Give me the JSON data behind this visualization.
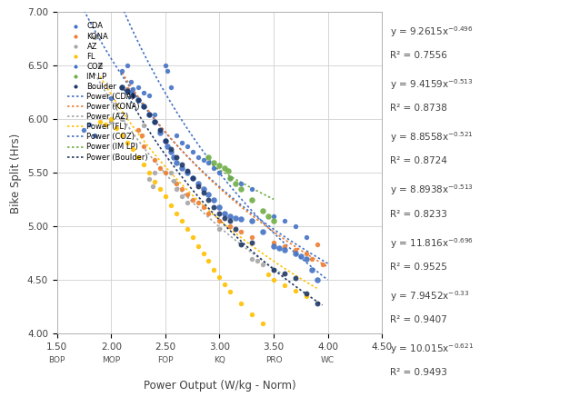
{
  "title": "",
  "xlabel": "Power Output (W/kg - Norm)",
  "ylabel": "Bike Split (Hrs)",
  "xlim": [
    1.5,
    4.5
  ],
  "ylim": [
    4.0,
    7.0
  ],
  "xticks": [
    1.5,
    2.0,
    2.5,
    3.0,
    3.5,
    4.0,
    4.5
  ],
  "yticks": [
    4.0,
    4.5,
    5.0,
    5.5,
    6.0,
    6.5,
    7.0
  ],
  "x_secondary_labels": {
    "1.5": "BOP",
    "2.0": "MOP",
    "2.5": "FOP",
    "3.0": "KQ",
    "3.5": "PRO",
    "4.0": "WC"
  },
  "series": {
    "CDA": {
      "color": "#4472C4",
      "size": 15,
      "x": [
        1.75,
        1.8,
        1.85,
        2.0,
        2.1,
        2.15,
        2.18,
        2.2,
        2.25,
        2.3,
        2.35,
        2.4,
        2.45,
        2.5,
        2.52,
        2.55,
        2.6,
        2.65,
        2.7,
        2.75,
        2.8,
        2.85,
        2.9,
        2.95,
        3.0,
        3.1,
        3.2,
        3.3,
        3.5,
        3.6,
        3.7,
        3.8
      ],
      "y": [
        5.9,
        5.95,
        5.85,
        6.2,
        6.45,
        6.5,
        6.35,
        6.28,
        6.3,
        6.25,
        6.22,
        6.05,
        5.9,
        6.5,
        6.45,
        6.3,
        5.85,
        5.78,
        5.75,
        5.7,
        5.65,
        5.62,
        5.6,
        5.55,
        5.5,
        5.45,
        5.4,
        5.35,
        5.1,
        5.05,
        5.0,
        4.9
      ]
    },
    "KONA": {
      "color": "#ED7D31",
      "size": 15,
      "x": [
        2.1,
        2.15,
        2.2,
        2.25,
        2.28,
        2.3,
        2.4,
        2.45,
        2.5,
        2.6,
        2.65,
        2.7,
        2.75,
        2.8,
        2.85,
        2.9,
        3.0,
        3.1,
        3.2,
        3.3,
        3.5,
        3.6,
        3.7,
        3.8,
        3.85,
        3.9,
        3.95
      ],
      "y": [
        6.3,
        6.28,
        6.22,
        5.9,
        5.85,
        5.75,
        5.62,
        5.55,
        5.5,
        5.4,
        5.35,
        5.3,
        5.25,
        5.22,
        5.18,
        5.12,
        5.05,
        5.0,
        4.95,
        4.9,
        4.85,
        4.82,
        4.78,
        4.75,
        4.7,
        4.83,
        4.65
      ]
    },
    "AZ": {
      "color": "#A5A5A5",
      "size": 15,
      "x": [
        1.85,
        1.9,
        2.0,
        2.1,
        2.3,
        2.35,
        2.38,
        2.4,
        2.55,
        2.58,
        2.6,
        2.65,
        2.7,
        3.0,
        3.3,
        3.35,
        3.4,
        3.5
      ],
      "y": [
        6.77,
        6.5,
        5.98,
        6.0,
        5.94,
        5.44,
        5.38,
        5.5,
        5.5,
        5.43,
        5.35,
        5.28,
        5.22,
        4.98,
        4.7,
        4.68,
        4.65,
        4.6
      ]
    },
    "FL": {
      "color": "#FFC000",
      "size": 15,
      "x": [
        1.9,
        1.95,
        2.0,
        2.05,
        2.1,
        2.15,
        2.2,
        2.25,
        2.3,
        2.35,
        2.4,
        2.45,
        2.5,
        2.55,
        2.6,
        2.65,
        2.7,
        2.75,
        2.8,
        2.85,
        2.9,
        2.95,
        3.0,
        3.05,
        3.1,
        3.2,
        3.3,
        3.4,
        3.45,
        3.5,
        3.6,
        3.7,
        3.8
      ],
      "y": [
        5.98,
        5.95,
        6.0,
        5.92,
        5.85,
        5.78,
        5.72,
        5.65,
        5.58,
        5.5,
        5.42,
        5.35,
        5.28,
        5.2,
        5.12,
        5.05,
        4.98,
        4.9,
        4.82,
        4.75,
        4.68,
        4.6,
        4.53,
        4.46,
        4.39,
        4.28,
        4.18,
        4.1,
        4.55,
        4.5,
        4.45,
        4.4,
        4.35
      ]
    },
    "COZ": {
      "color": "#4472C4",
      "size": 22,
      "x": [
        2.1,
        2.15,
        2.18,
        2.2,
        2.25,
        2.3,
        2.35,
        2.4,
        2.45,
        2.5,
        2.52,
        2.55,
        2.58,
        2.6,
        2.65,
        2.7,
        2.75,
        2.8,
        2.85,
        2.9,
        2.95,
        3.0,
        3.05,
        3.1,
        3.15,
        3.2,
        3.3,
        3.4,
        3.5,
        3.55,
        3.6,
        3.7,
        3.75,
        3.8,
        3.85,
        3.9
      ],
      "y": [
        6.3,
        6.27,
        6.25,
        6.22,
        6.18,
        6.12,
        6.05,
        5.98,
        5.88,
        5.8,
        5.75,
        5.7,
        5.65,
        5.6,
        5.55,
        5.5,
        5.45,
        5.4,
        5.35,
        5.3,
        5.25,
        5.18,
        5.12,
        5.1,
        5.08,
        5.07,
        5.05,
        4.95,
        4.82,
        4.8,
        4.78,
        4.75,
        4.72,
        4.7,
        4.6,
        4.5
      ]
    },
    "IM LP": {
      "color": "#70AD47",
      "size": 22,
      "x": [
        2.9,
        2.95,
        3.0,
        3.05,
        3.08,
        3.1,
        3.15,
        3.2,
        3.3,
        3.4,
        3.45,
        3.5
      ],
      "y": [
        5.65,
        5.6,
        5.57,
        5.55,
        5.52,
        5.45,
        5.4,
        5.35,
        5.25,
        5.15,
        5.1,
        5.05
      ]
    },
    "Boulder": {
      "color": "#203864",
      "size": 18,
      "x": [
        2.1,
        2.15,
        2.2,
        2.25,
        2.3,
        2.35,
        2.4,
        2.45,
        2.5,
        2.55,
        2.6,
        2.65,
        2.7,
        2.75,
        2.8,
        2.85,
        2.9,
        2.95,
        3.0,
        3.05,
        3.1,
        3.15,
        3.2,
        3.3,
        3.5,
        3.6,
        3.7,
        3.8,
        3.9
      ],
      "y": [
        6.3,
        6.27,
        6.22,
        6.18,
        6.12,
        6.05,
        5.98,
        5.9,
        5.8,
        5.72,
        5.65,
        5.58,
        5.52,
        5.45,
        5.38,
        5.32,
        5.25,
        5.18,
        5.12,
        5.08,
        5.05,
        4.98,
        4.83,
        4.85,
        4.6,
        4.56,
        4.52,
        4.38,
        4.28
      ]
    }
  },
  "power_fits": {
    "CDA": {
      "a": 9.2615,
      "b": -0.496,
      "color": "#4472C4",
      "x_range": [
        1.75,
        4.0
      ]
    },
    "KONA": {
      "a": 9.4159,
      "b": -0.513,
      "color": "#ED7D31",
      "x_range": [
        2.1,
        4.0
      ]
    },
    "AZ": {
      "a": 8.8558,
      "b": -0.521,
      "color": "#A5A5A5",
      "x_range": [
        1.85,
        3.6
      ]
    },
    "FL": {
      "a": 8.8938,
      "b": -0.513,
      "color": "#FFC000",
      "x_range": [
        1.9,
        3.9
      ]
    },
    "COZ": {
      "a": 11.816,
      "b": -0.696,
      "color": "#4472C4",
      "x_range": [
        2.1,
        4.0
      ]
    },
    "IM LP": {
      "a": 7.9452,
      "b": -0.33,
      "color": "#70AD47",
      "x_range": [
        2.9,
        3.5
      ]
    },
    "Boulder": {
      "a": 10.015,
      "b": -0.621,
      "color": "#203864",
      "x_range": [
        2.1,
        3.95
      ]
    }
  },
  "ann_texts": [
    "y = 9.2615x^{-0.496}\nR² = 0.7556",
    "y = 9.4159x^{-0.513}\nR² = 0.8738",
    "y = 8.8558x^{-0.521}\nR² = 0.8724",
    "y = 8.8938x^{-0.513}\nR² = 0.8233",
    "y = 11.816x^{-0.696}\nR² = 0.9525",
    "y = 7.9452x^{-0.33}\nR² = 0.9407",
    "y = 10.015x^{-0.621}\nR² = 0.9493"
  ],
  "background_color": "#FFFFFF",
  "grid_color": "#D0D0D0"
}
